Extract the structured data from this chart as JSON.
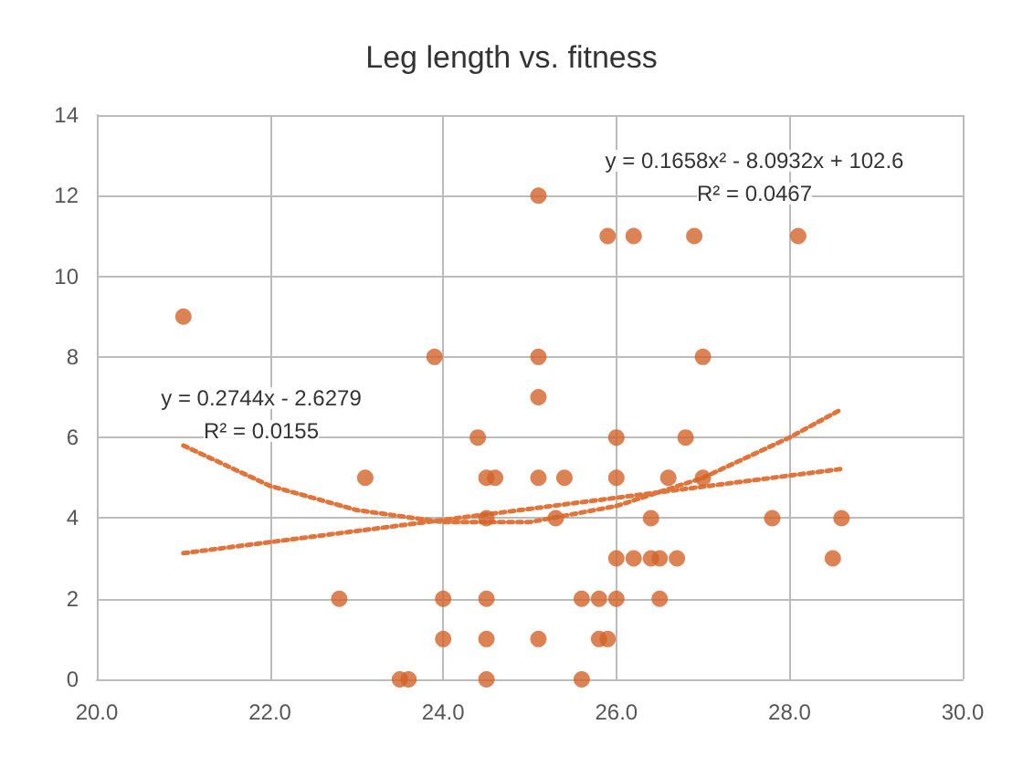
{
  "chart_data": {
    "type": "scatter",
    "title": "Leg length vs. fitness",
    "grid": true,
    "marker": "circle",
    "xlim": [
      20,
      30
    ],
    "xticks": [
      {
        "value": 20,
        "label": "20.0"
      },
      {
        "value": 22,
        "label": "22.0"
      },
      {
        "value": 24,
        "label": "24.0"
      },
      {
        "value": 26,
        "label": "26.0"
      },
      {
        "value": 28,
        "label": "28.0"
      },
      {
        "value": 30,
        "label": "30.0"
      }
    ],
    "ylim": [
      0,
      14
    ],
    "yticks": [
      0,
      2,
      4,
      6,
      8,
      10,
      12,
      14
    ],
    "series": [
      {
        "color": "#d2642a",
        "x": [
          21.0,
          23.9,
          23.1,
          22.8,
          23.5,
          23.6,
          24.0,
          24.0,
          24.4,
          24.5,
          24.6,
          24.5,
          24.5,
          24.5,
          24.5,
          25.1,
          25.1,
          25.1,
          25.1,
          25.1,
          25.4,
          25.3,
          25.6,
          25.6,
          25.8,
          25.8,
          25.9,
          25.9,
          26.2,
          26.0,
          26.0,
          26.0,
          26.0,
          26.2,
          26.4,
          26.4,
          26.5,
          26.7,
          26.5,
          26.6,
          26.8,
          26.9,
          27.0,
          27.0,
          27.8,
          28.1,
          28.5,
          28.6
        ],
        "values": [
          9,
          8,
          5,
          2,
          0,
          0,
          2,
          1,
          6,
          5,
          5,
          4,
          2,
          1,
          0,
          12,
          8,
          7,
          5,
          1,
          5,
          4,
          2,
          0,
          2,
          1,
          1,
          11,
          11,
          6,
          5,
          3,
          2,
          3,
          4,
          3,
          3,
          3,
          2,
          5,
          6,
          11,
          8,
          5,
          4,
          11,
          3,
          4
        ]
      },
      {
        "type": "line",
        "color": "#e0743a",
        "line_style": "dotted",
        "marker": "none",
        "x": [
          21,
          28.6
        ],
        "values": [
          3.13,
          5.22
        ]
      },
      {
        "type": "line",
        "color": "#e0743a",
        "line_style": "dotted",
        "marker": "none",
        "x": [
          21,
          22,
          23,
          24,
          25,
          26,
          27,
          28,
          28.6
        ],
        "values": [
          5.8,
          4.8,
          4.2,
          3.9,
          3.9,
          4.3,
          5.0,
          6.0,
          6.7
        ]
      }
    ],
    "annotations": [
      "y = 0.2744x - 2.6279",
      "R² = 0.0155",
      "y = 0.1658x² - 8.0932x + 102.6",
      "R² = 0.0467"
    ]
  }
}
